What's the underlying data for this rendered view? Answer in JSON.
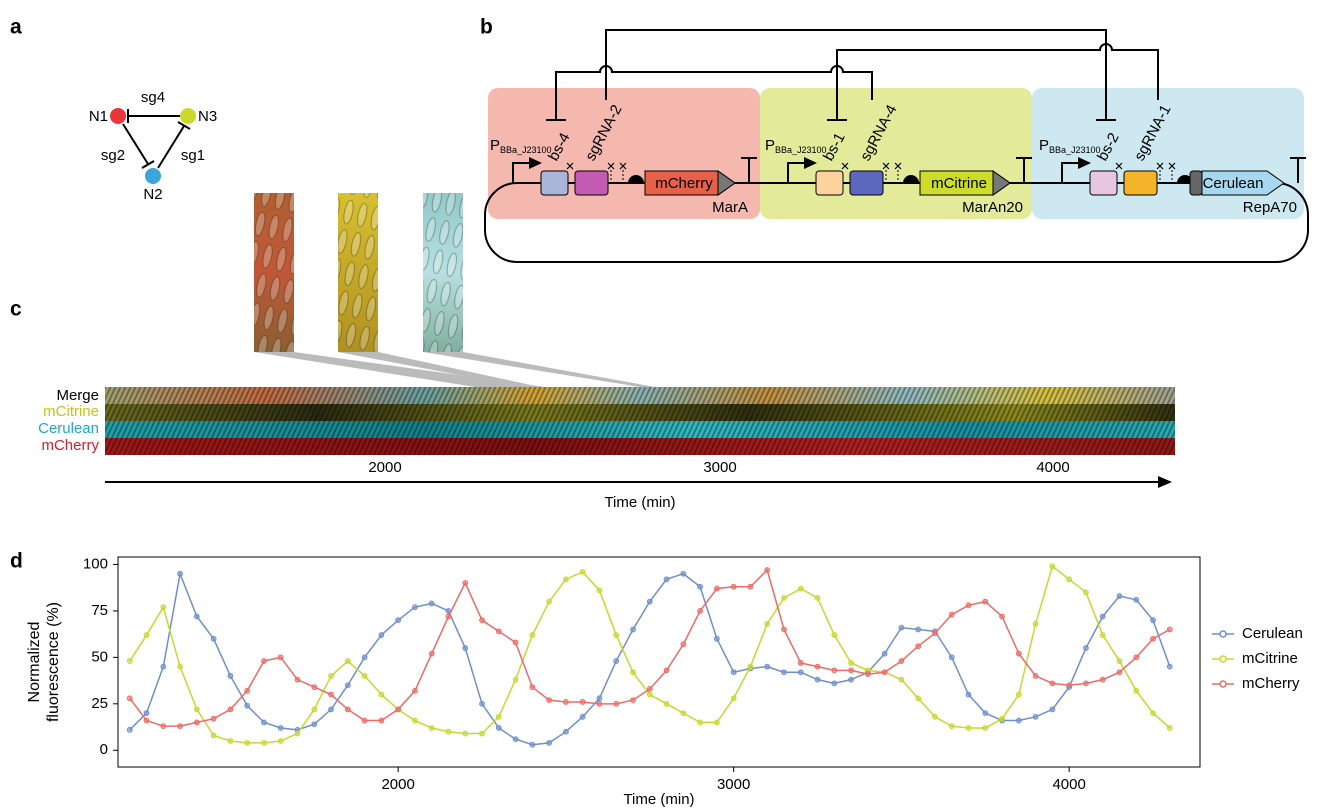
{
  "panel_labels": [
    "a",
    "b",
    "c",
    "d"
  ],
  "network": {
    "nodes": [
      "N1",
      "N2",
      "N3"
    ],
    "edges": [
      "sg4",
      "sg2",
      "sg1"
    ]
  },
  "circuit": {
    "modules": [
      {
        "promoter": "P",
        "promoter_sub": "BBa_J23100",
        "binding_site": "bs-4",
        "sgrna": "sgRNA-2",
        "reporter": "mCherry",
        "tag": "MarA"
      },
      {
        "promoter": "P",
        "promoter_sub": "BBa_J23100",
        "binding_site": "bs-1",
        "sgrna": "sgRNA-4",
        "reporter": "mCitrine",
        "tag": "MarAn20"
      },
      {
        "promoter": "P",
        "promoter_sub": "BBa_J23100",
        "binding_site": "bs-2",
        "sgrna": "sgRNA-1",
        "reporter": "Cerulean",
        "tag": "RepA70"
      }
    ]
  },
  "kymograph": {
    "channels": [
      "Merge",
      "mCitrine",
      "Cerulean",
      "mCherry"
    ],
    "ticks": [
      2000,
      3000,
      4000
    ],
    "axis_label": "Time (min)"
  },
  "chart_data": {
    "type": "line",
    "x_label": "Time (min)",
    "y_label": "Normalized fluorescence (%)",
    "x": [
      1200,
      1250,
      1300,
      1350,
      1400,
      1450,
      1500,
      1550,
      1600,
      1650,
      1700,
      1750,
      1800,
      1850,
      1900,
      1950,
      2000,
      2050,
      2100,
      2150,
      2200,
      2250,
      2300,
      2350,
      2400,
      2450,
      2500,
      2550,
      2600,
      2650,
      2700,
      2750,
      2800,
      2850,
      2900,
      2950,
      3000,
      3050,
      3100,
      3150,
      3200,
      3250,
      3300,
      3350,
      3400,
      3450,
      3500,
      3550,
      3600,
      3650,
      3700,
      3750,
      3800,
      3850,
      3900,
      3950,
      4000,
      4050,
      4100,
      4150,
      4200,
      4250,
      4300
    ],
    "xlim": [
      1165,
      4390
    ],
    "xticks": [
      2000,
      3000,
      4000
    ],
    "ylim": [
      -9,
      104
    ],
    "yticks": [
      0,
      25,
      50,
      75,
      100
    ],
    "legend": "right",
    "series": [
      {
        "name": "Cerulean",
        "color": "#6f8fcb",
        "values": [
          11,
          20,
          45,
          95,
          72,
          60,
          40,
          24,
          15,
          12,
          11,
          14,
          22,
          35,
          50,
          62,
          70,
          77,
          79,
          75,
          55,
          25,
          12,
          6,
          3,
          4,
          10,
          18,
          28,
          48,
          65,
          80,
          92,
          95,
          88,
          60,
          42,
          44,
          45,
          42,
          42,
          38,
          36,
          38,
          42,
          52,
          66,
          65,
          64,
          50,
          30,
          20,
          16,
          16,
          18,
          22,
          34,
          55,
          72,
          83,
          81,
          70,
          45
        ]
      },
      {
        "name": "mCitrine",
        "color": "#c6d82e",
        "values": [
          48,
          62,
          77,
          45,
          22,
          8,
          5,
          4,
          4,
          5,
          9,
          22,
          40,
          48,
          40,
          30,
          22,
          16,
          12,
          10,
          9,
          9,
          18,
          38,
          62,
          80,
          92,
          96,
          86,
          62,
          42,
          30,
          25,
          20,
          15,
          15,
          28,
          45,
          68,
          82,
          87,
          82,
          62,
          47,
          43,
          42,
          38,
          28,
          18,
          13,
          12,
          12,
          17,
          30,
          68,
          99,
          92,
          85,
          62,
          48,
          32,
          20,
          12
        ]
      },
      {
        "name": "mCherry",
        "color": "#ec6b67",
        "values": [
          28,
          16,
          13,
          13,
          15,
          17,
          22,
          32,
          48,
          50,
          38,
          34,
          30,
          22,
          16,
          16,
          22,
          32,
          52,
          72,
          90,
          70,
          64,
          58,
          34,
          27,
          26,
          26,
          25,
          25,
          27,
          33,
          43,
          57,
          75,
          87,
          88,
          88,
          97,
          65,
          47,
          45,
          43,
          43,
          41,
          42,
          48,
          56,
          63,
          73,
          78,
          80,
          72,
          52,
          40,
          36,
          35,
          36,
          38,
          42,
          50,
          60,
          65
        ]
      }
    ]
  }
}
